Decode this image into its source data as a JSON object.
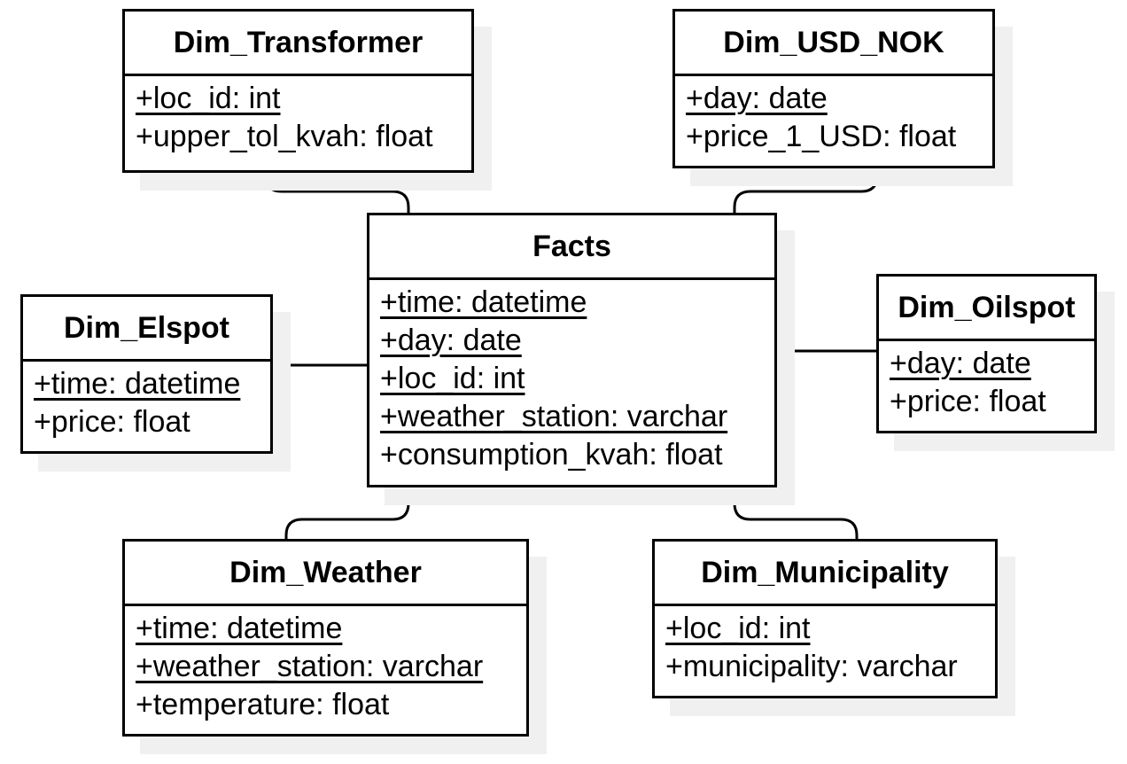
{
  "colors": {
    "stroke": "#000000",
    "background": "#ffffff",
    "shadow": "#f0f0f0"
  },
  "entities": {
    "transformer": {
      "name": "Dim_Transformer",
      "attributes": [
        {
          "text": "+loc_id: int",
          "key": true
        },
        {
          "text": "+upper_tol_kvah: float",
          "key": false
        }
      ]
    },
    "usd_nok": {
      "name": "Dim_USD_NOK",
      "attributes": [
        {
          "text": "+day: date",
          "key": true
        },
        {
          "text": "+price_1_USD: float",
          "key": false
        }
      ]
    },
    "facts": {
      "name": "Facts",
      "attributes": [
        {
          "text": "+time: datetime",
          "key": true
        },
        {
          "text": "+day: date",
          "key": true
        },
        {
          "text": "+loc_id: int",
          "key": true
        },
        {
          "text": "+weather_station: varchar",
          "key": true
        },
        {
          "text": "+consumption_kvah: float",
          "key": false
        }
      ]
    },
    "elspot": {
      "name": "Dim_Elspot",
      "attributes": [
        {
          "text": "+time: datetime",
          "key": true
        },
        {
          "text": "+price: float",
          "key": false
        }
      ]
    },
    "oilspot": {
      "name": "Dim_Oilspot",
      "attributes": [
        {
          "text": "+day: date",
          "key": true
        },
        {
          "text": "+price: float",
          "key": false
        }
      ]
    },
    "weather": {
      "name": "Dim_Weather",
      "attributes": [
        {
          "text": "+time: datetime",
          "key": true
        },
        {
          "text": "+weather_station: varchar",
          "key": true
        },
        {
          "text": "+temperature: float",
          "key": false
        }
      ]
    },
    "municipality": {
      "name": "Dim_Municipality",
      "attributes": [
        {
          "text": "+loc_id: int",
          "key": true
        },
        {
          "text": "+municipality: varchar",
          "key": false
        }
      ]
    }
  }
}
